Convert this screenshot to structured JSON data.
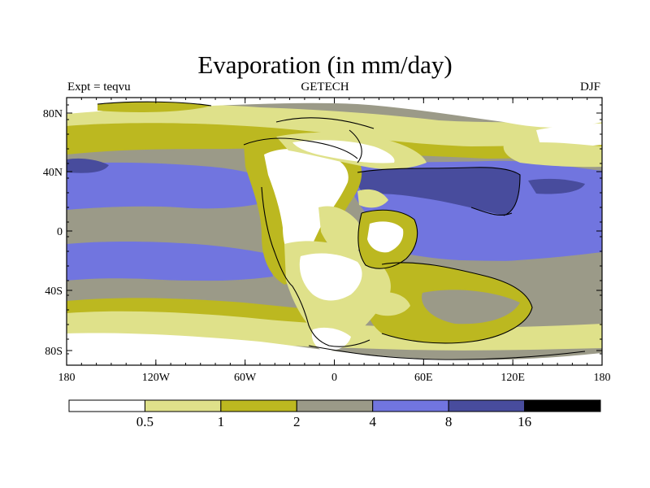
{
  "title": "Evaporation (in mm/day)",
  "subtitle_left": "Expt = teqvu",
  "subtitle_center": "GETECH",
  "subtitle_right": "DJF",
  "lat_labels": [
    "80N",
    "40N",
    "0",
    "40S",
    "80S"
  ],
  "lon_labels": [
    "180",
    "120W",
    "60W",
    "0",
    "60E",
    "120E",
    "180"
  ],
  "colorbar": {
    "colors": [
      "#ffffff",
      "#dfe18a",
      "#bcb820",
      "#9b9a88",
      "#7175df",
      "#484c9d",
      "#000000"
    ],
    "levels": [
      "0.5",
      "1",
      "2",
      "4",
      "8",
      "16"
    ]
  },
  "palette": {
    "white": "#ffffff",
    "pale": "#dfe18a",
    "olive": "#bcb820",
    "gray": "#9b9a88",
    "blue": "#7175df",
    "dark": "#484c9d"
  }
}
